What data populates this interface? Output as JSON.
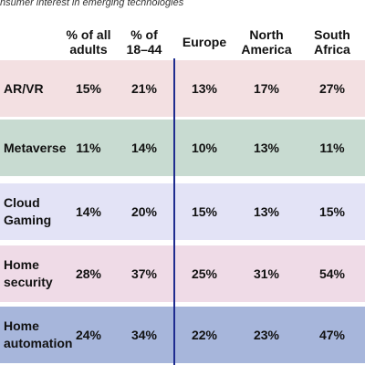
{
  "title": "Consumer interest in emerging technologies",
  "chart_data": {
    "type": "table",
    "title": "Consumer interest in emerging technologies",
    "columns": [
      "% of all adults",
      "% of 18–44",
      "Europe",
      "North America",
      "South Africa"
    ],
    "rows": [
      {
        "label": "AR/VR",
        "values": [
          "15%",
          "21%",
          "13%",
          "17%",
          "27%"
        ],
        "color": "#f3e0e2"
      },
      {
        "label": "Metaverse",
        "values": [
          "11%",
          "14%",
          "10%",
          "13%",
          "11%"
        ],
        "color": "#c8dbd1"
      },
      {
        "label": "Cloud Gaming",
        "values": [
          "14%",
          "20%",
          "15%",
          "13%",
          "15%"
        ],
        "color": "#e3e3f6"
      },
      {
        "label": "Home security",
        "values": [
          "28%",
          "37%",
          "25%",
          "31%",
          "54%"
        ],
        "color": "#efdbe7"
      },
      {
        "label": "Home automation",
        "values": [
          "24%",
          "34%",
          "22%",
          "23%",
          "47%"
        ],
        "color": "#a7b6db"
      }
    ],
    "divider_color": "#1f2c8f"
  }
}
